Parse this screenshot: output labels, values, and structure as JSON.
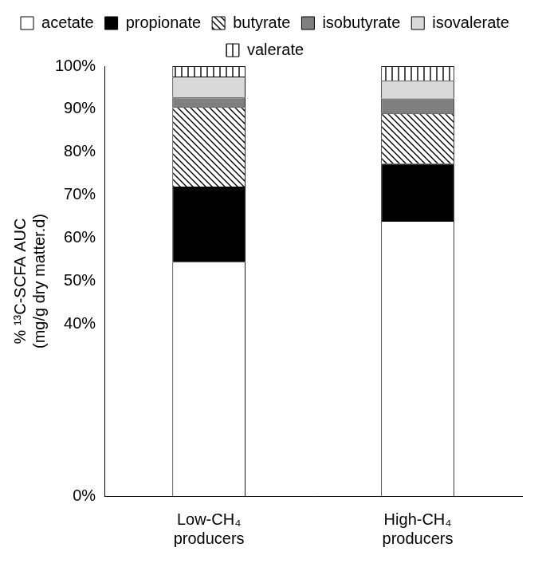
{
  "chart_data": {
    "type": "bar",
    "stacked": true,
    "grid": false,
    "legend": "top",
    "y_label": [
      "% ¹³C-SCFA AUC",
      "(mg/g dry matter.d)"
    ],
    "categories": [
      "Low-CH₄ producers",
      "High-CH₄ producers"
    ],
    "series": [
      {
        "name": "acetate",
        "color": "#ffffff",
        "values": [
          54.5,
          64.0
        ]
      },
      {
        "name": "propionate",
        "color": "#000000",
        "values": [
          17.5,
          13.3
        ]
      },
      {
        "name": "butyrate",
        "color": "#ffffff",
        "values": [
          18.5,
          11.7
        ]
      },
      {
        "name": "isobutyrate",
        "color": "#7f7f7f",
        "values": [
          2.2,
          3.5
        ]
      },
      {
        "name": "isovalerate",
        "color": "#d9d9d9",
        "values": [
          4.9,
          4.1
        ]
      },
      {
        "name": "valerate",
        "color": "#ffffff",
        "values": [
          2.4,
          3.4
        ]
      }
    ],
    "ylim": [
      0,
      100
    ],
    "yticks": [
      {
        "value": 0,
        "label": "0%"
      },
      {
        "value": 40,
        "label": "40%"
      },
      {
        "value": 50,
        "label": "50%"
      },
      {
        "value": 60,
        "label": "60%"
      },
      {
        "value": 70,
        "label": "70%"
      },
      {
        "value": 80,
        "label": "80%"
      },
      {
        "value": 90,
        "label": "90%"
      },
      {
        "value": 100,
        "label": "100%"
      }
    ]
  }
}
